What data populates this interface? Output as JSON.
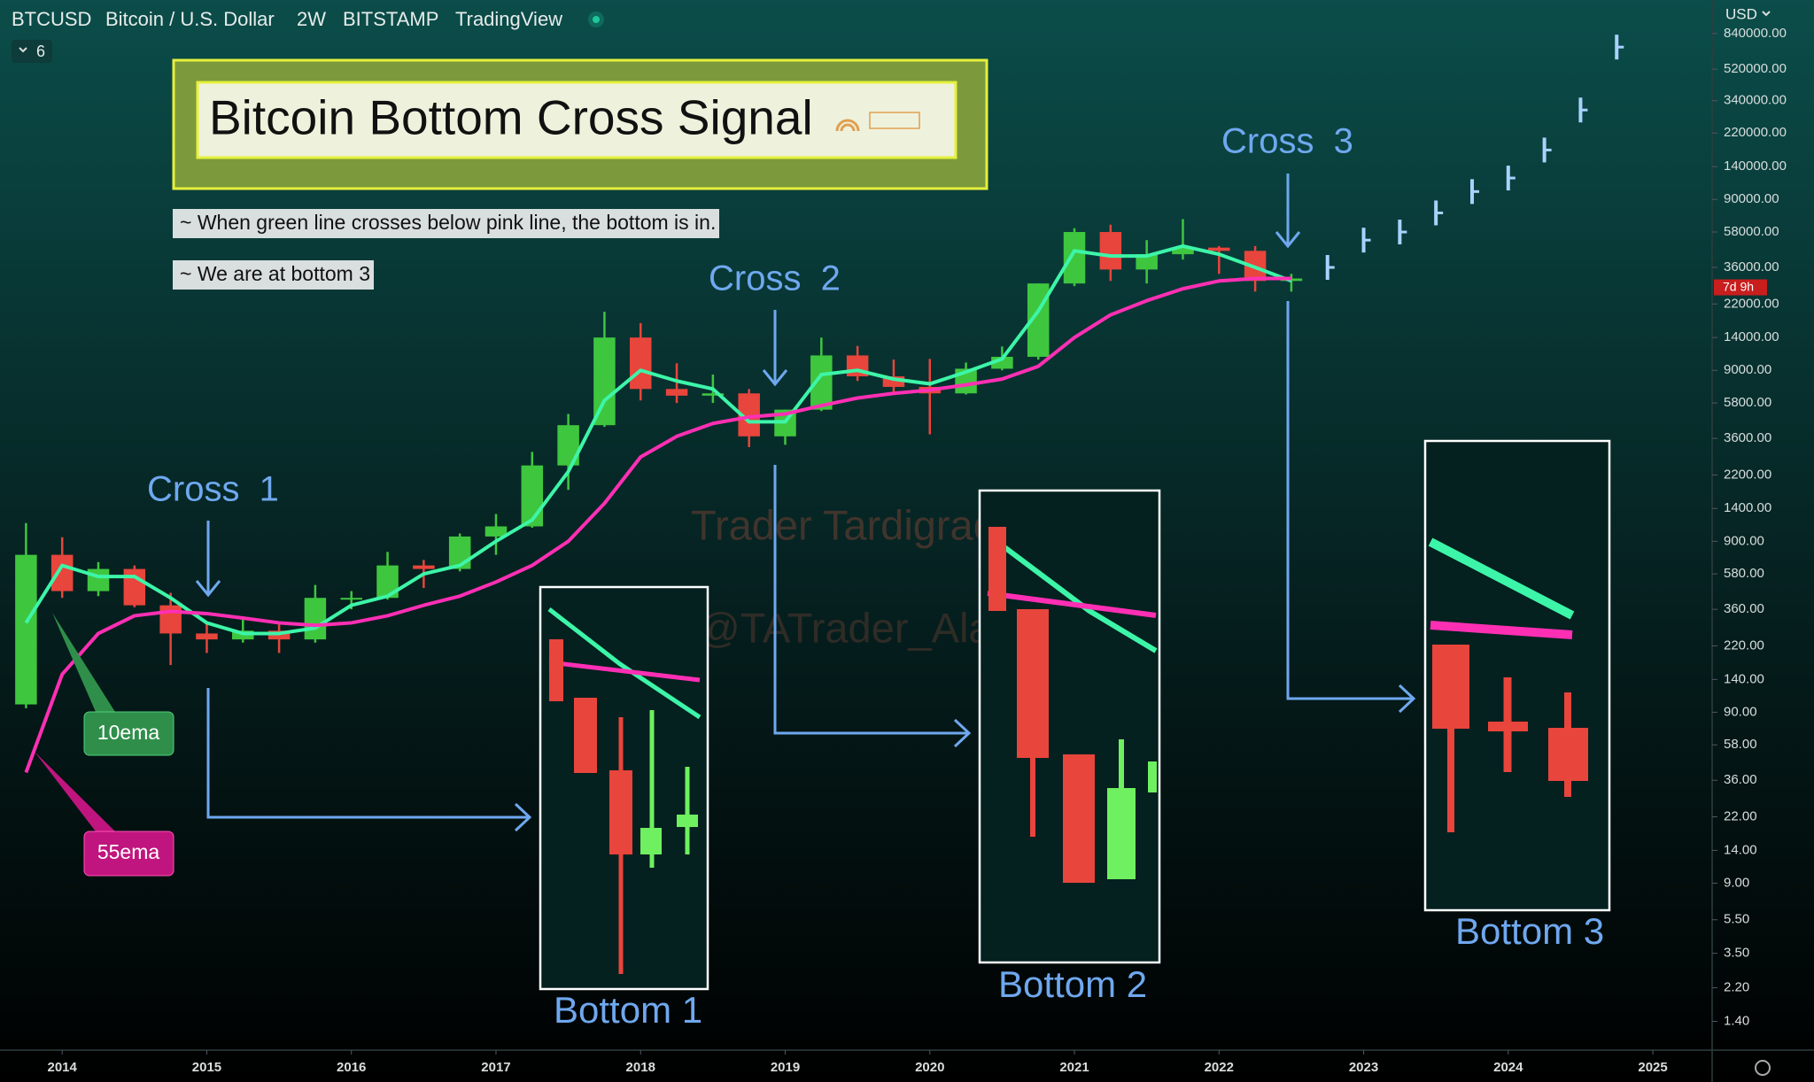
{
  "header": {
    "symbol": "BTCUSD",
    "name": "Bitcoin / U.S. Dollar",
    "interval": "2W",
    "exchange": "BITSTAMP",
    "source": "TradingView",
    "indicators": "6",
    "currency": "USD",
    "countdown": "7d 9h"
  },
  "chart_data": {
    "type": "candlestick",
    "title": "Bitcoin Bottom Cross Signal",
    "notes": [
      "~ When green line crosses below pink line, the bottom is in.",
      "~ We are at bottom 3"
    ],
    "crosses": [
      "Cross  1",
      "Cross  2",
      "Cross  3"
    ],
    "bottoms": [
      "Bottom 1",
      "Bottom 2",
      "Bottom 3"
    ],
    "watermark": [
      "Trader Tardigrade",
      "@TATrader_Alan"
    ],
    "x": [
      2013.75,
      2014,
      2014.25,
      2014.5,
      2014.75,
      2015,
      2015.25,
      2015.5,
      2015.75,
      2016,
      2016.25,
      2016.5,
      2016.75,
      2017,
      2017.25,
      2017.5,
      2017.75,
      2018,
      2018.25,
      2018.5,
      2018.75,
      2019,
      2019.25,
      2019.5,
      2019.75,
      2020,
      2020.25,
      2020.5,
      2020.75,
      2021,
      2021.25,
      2021.5,
      2021.75,
      2022,
      2022.25,
      2022.5
    ],
    "open": [
      100,
      750,
      460,
      620,
      380,
      260,
      240,
      270,
      240,
      420,
      420,
      650,
      620,
      960,
      1100,
      2500,
      4300,
      14000,
      7000,
      6400,
      6600,
      3700,
      5300,
      11000,
      8300,
      7200,
      6600,
      9200,
      10800,
      29000,
      58000,
      35000,
      43000,
      47000,
      45000,
      30000
    ],
    "high": [
      1150,
      950,
      680,
      650,
      450,
      300,
      320,
      300,
      500,
      460,
      780,
      700,
      1000,
      1300,
      3000,
      5000,
      19800,
      17000,
      9900,
      8500,
      7000,
      5300,
      14000,
      12500,
      10400,
      10500,
      10000,
      12400,
      29000,
      61000,
      64000,
      52000,
      69000,
      48000,
      48000,
      33000
    ],
    "low": [
      95,
      420,
      430,
      370,
      170,
      200,
      230,
      200,
      230,
      360,
      410,
      480,
      600,
      750,
      1080,
      1800,
      4200,
      6000,
      5800,
      5800,
      3200,
      3300,
      5200,
      7800,
      6500,
      3800,
      6500,
      9000,
      10400,
      28000,
      30000,
      29000,
      40000,
      33000,
      26000,
      26000
    ],
    "close": [
      750,
      460,
      620,
      380,
      260,
      240,
      270,
      240,
      420,
      420,
      650,
      620,
      960,
      1100,
      2500,
      4300,
      14000,
      7000,
      6400,
      6600,
      3700,
      5300,
      11000,
      8300,
      7200,
      6600,
      9200,
      10800,
      29000,
      58000,
      35000,
      43000,
      47000,
      45000,
      30000,
      31000
    ],
    "up_color": "#3fc63f",
    "down_color": "#e8453c",
    "series": [
      {
        "name": "10ema",
        "color": "#3df5a8",
        "values": [
          300,
          650,
          560,
          560,
          420,
          300,
          260,
          260,
          280,
          380,
          430,
          580,
          650,
          900,
          1200,
          2300,
          6000,
          9000,
          7800,
          7000,
          4500,
          4500,
          8500,
          9000,
          8000,
          7500,
          8800,
          10500,
          20000,
          45000,
          42000,
          42000,
          48000,
          43000,
          36000,
          30000
        ]
      },
      {
        "name": "55ema",
        "color": "#ff2fb4",
        "values": [
          40,
          150,
          260,
          330,
          350,
          340,
          320,
          300,
          290,
          300,
          330,
          380,
          430,
          520,
          650,
          900,
          1500,
          2800,
          3700,
          4400,
          4800,
          5000,
          5600,
          6200,
          6600,
          6900,
          7400,
          8000,
          9500,
          14000,
          19000,
          23000,
          27000,
          30000,
          31000,
          31000
        ]
      }
    ],
    "projection": {
      "color": "#a8d2ff",
      "x": [
        2022.75,
        2023,
        2023.25,
        2023.5,
        2023.75,
        2024,
        2024.25,
        2024.5,
        2024.75
      ],
      "values": [
        36000,
        52000,
        58000,
        75000,
        100000,
        120000,
        175000,
        300000,
        700000
      ]
    },
    "xlim": [
      2013.57,
      2025.41
    ],
    "xticks": [
      2014,
      2015,
      2016,
      2017,
      2018,
      2019,
      2020,
      2021,
      2022,
      2023,
      2024,
      2025
    ],
    "ylim": [
      0.95,
      1320000
    ],
    "log_scale": true,
    "grid": false,
    "yticks": [
      {
        "value": 840000,
        "label": "840000.00"
      },
      {
        "value": 520000,
        "label": "520000.00"
      },
      {
        "value": 340000,
        "label": "340000.00"
      },
      {
        "value": 220000,
        "label": "220000.00"
      },
      {
        "value": 140000,
        "label": "140000.00"
      },
      {
        "value": 90000,
        "label": "90000.00"
      },
      {
        "value": 58000,
        "label": "58000.00"
      },
      {
        "value": 36000,
        "label": "36000.00"
      },
      {
        "value": 22000,
        "label": "22000.00"
      },
      {
        "value": 14000,
        "label": "14000.00"
      },
      {
        "value": 9000,
        "label": "9000.00"
      },
      {
        "value": 5800,
        "label": "5800.00"
      },
      {
        "value": 3600,
        "label": "3600.00"
      },
      {
        "value": 2200,
        "label": "2200.00"
      },
      {
        "value": 1400,
        "label": "1400.00"
      },
      {
        "value": 900,
        "label": "900.00"
      },
      {
        "value": 580,
        "label": "580.00"
      },
      {
        "value": 360,
        "label": "360.00"
      },
      {
        "value": 220,
        "label": "220.00"
      },
      {
        "value": 140,
        "label": "140.00"
      },
      {
        "value": 90,
        "label": "90.00"
      },
      {
        "value": 58,
        "label": "58.00"
      },
      {
        "value": 36,
        "label": "36.00"
      },
      {
        "value": 22,
        "label": "22.00"
      },
      {
        "value": 14,
        "label": "14.00"
      },
      {
        "value": 9,
        "label": "9.00"
      },
      {
        "value": 5.5,
        "label": "5.50"
      },
      {
        "value": 3.5,
        "label": "3.50"
      },
      {
        "value": 2.2,
        "label": "2.20"
      },
      {
        "value": 1.4,
        "label": "1.40"
      }
    ]
  }
}
